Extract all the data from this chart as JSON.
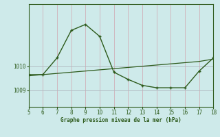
{
  "xlabel": "Graphe pression niveau de la mer (hPa)",
  "bg_color": "#ceeaea",
  "grid_color": "#b8d8d8",
  "line_color": "#2d5a1b",
  "spine_color": "#2d5a1b",
  "x_min": 5,
  "x_max": 18,
  "y_min": 1008.3,
  "y_max": 1012.6,
  "ytick_positions": [
    1009,
    1010
  ],
  "ytick_labels": [
    "1009",
    "1010"
  ],
  "xticks": [
    5,
    6,
    7,
    8,
    9,
    10,
    11,
    12,
    13,
    14,
    15,
    16,
    17,
    18
  ],
  "line1_x": [
    5,
    6,
    7,
    8,
    9,
    10,
    11,
    12,
    13,
    14,
    15,
    16,
    17,
    18
  ],
  "line1_y": [
    1009.65,
    1009.65,
    1010.35,
    1011.5,
    1011.75,
    1011.25,
    1009.75,
    1009.45,
    1009.2,
    1009.1,
    1009.1,
    1009.1,
    1009.8,
    1010.35
  ],
  "line2_x": [
    5,
    6,
    7,
    8,
    9,
    10,
    11,
    12,
    13,
    14,
    15,
    16,
    17,
    18
  ],
  "line2_y": [
    1009.6,
    1009.65,
    1009.7,
    1009.75,
    1009.8,
    1009.85,
    1009.9,
    1009.95,
    1010.0,
    1010.05,
    1010.1,
    1010.15,
    1010.2,
    1010.3
  ]
}
